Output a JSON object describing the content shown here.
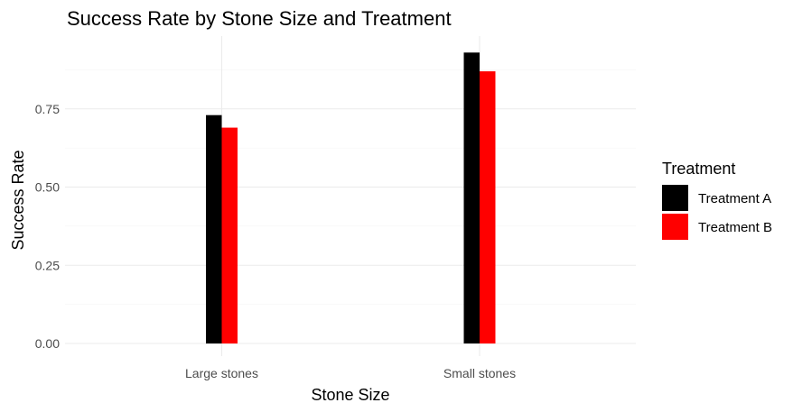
{
  "chart_data": {
    "type": "bar",
    "title": "Success Rate by Stone Size and Treatment",
    "xlabel": "Stone Size",
    "ylabel": "Success Rate",
    "categories": [
      "Large stones",
      "Small stones"
    ],
    "series": [
      {
        "name": "Treatment A",
        "values": [
          0.73,
          0.93
        ],
        "color": "#000000"
      },
      {
        "name": "Treatment B",
        "values": [
          0.69,
          0.87
        ],
        "color": "#ff0000"
      }
    ],
    "ylim": [
      0,
      0.95
    ],
    "yticks": [
      0,
      0.25,
      0.5,
      0.75
    ],
    "ytick_labels": [
      "0.00",
      "0.25",
      "0.50",
      "0.75"
    ],
    "grid": true,
    "legend": {
      "title": "Treatment",
      "placement": "right"
    }
  }
}
